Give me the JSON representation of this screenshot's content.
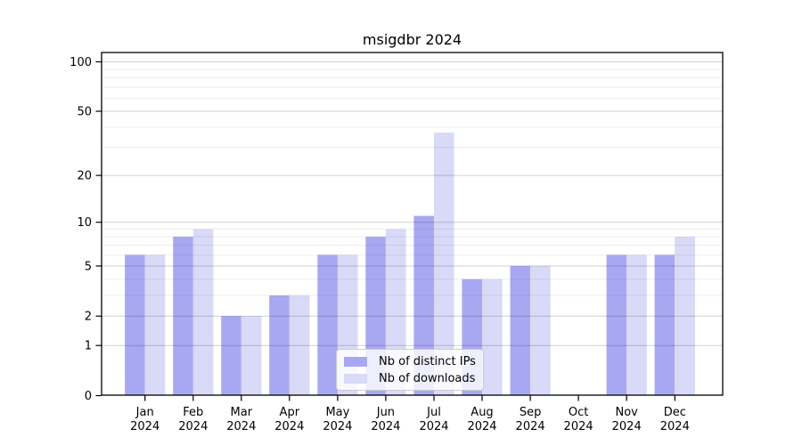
{
  "chart_data": {
    "type": "bar",
    "title": "msigdbr 2024",
    "xlabel": "",
    "ylabel": "",
    "yscale": "log1p",
    "ylim": [
      0,
      115
    ],
    "grid": true,
    "legend_position": "lower center",
    "year": "2024",
    "months": [
      "Jan",
      "Feb",
      "Mar",
      "Apr",
      "May",
      "Jun",
      "Jul",
      "Aug",
      "Sep",
      "Oct",
      "Nov",
      "Dec"
    ],
    "categories": [
      "Jan 2024",
      "Feb 2024",
      "Mar 2024",
      "Apr 2024",
      "May 2024",
      "Jun 2024",
      "Jul 2024",
      "Aug 2024",
      "Sep 2024",
      "Oct 2024",
      "Nov 2024",
      "Dec 2024"
    ],
    "yticks": [
      100,
      50,
      20,
      10,
      5,
      2,
      1,
      0
    ],
    "minor_gridline_values": [
      3,
      4,
      6,
      7,
      8,
      9,
      30,
      40,
      60,
      70,
      80,
      90
    ],
    "series": [
      {
        "name": "Nb of distinct IPs",
        "color": "#a8a8f2",
        "values": [
          6,
          8,
          2,
          3,
          6,
          8,
          11,
          4,
          5,
          0,
          6,
          6
        ]
      },
      {
        "name": "Nb of downloads",
        "color": "#d9d9f8",
        "values": [
          6,
          9,
          2,
          3,
          6,
          9,
          37,
          4,
          5,
          0,
          6,
          8
        ]
      }
    ],
    "colors": {
      "spine": "#000000",
      "major_grid": "rgba(0,0,0,0.18)",
      "minor_grid": "rgba(0,0,0,0.07)"
    }
  }
}
